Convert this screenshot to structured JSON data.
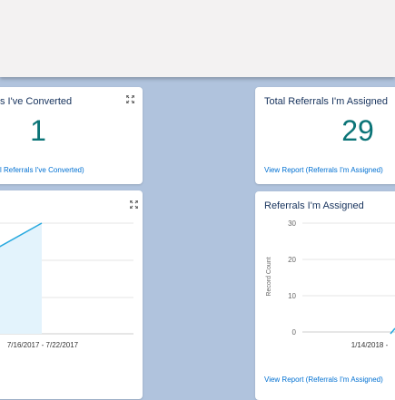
{
  "header": {},
  "cards": [
    {
      "title": "s I've Converted",
      "metric": "1",
      "link": "l Referrals I've Converted)"
    },
    {
      "title": "Total Referrals I'm Assigned",
      "metric": "29",
      "link": "View Report (Referrals I'm Assigned)"
    }
  ],
  "charts": [
    {
      "x_label": "7/16/2017 - 7/22/2017"
    },
    {
      "title": "Referrals I'm Assigned",
      "y_axis_label": "Record Count",
      "ylim": [
        0,
        30
      ],
      "yticks": [
        30,
        20,
        10,
        0
      ],
      "x_label": "1/14/2018 -",
      "link": "View Report (Referrals I'm Assigned)"
    }
  ]
}
